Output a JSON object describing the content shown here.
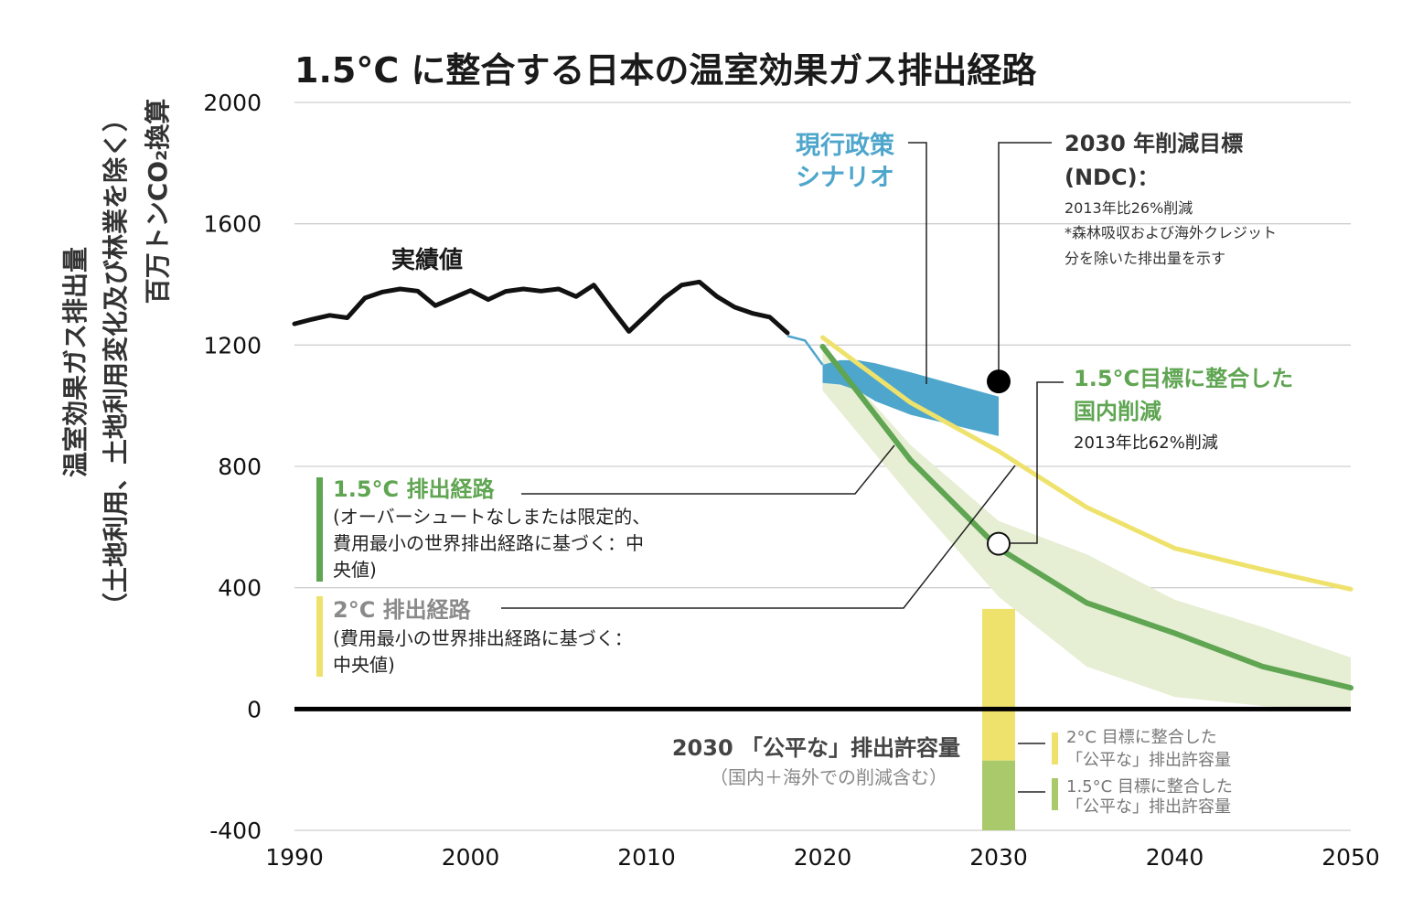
{
  "chart_data": {
    "type": "line",
    "title": "1.5°C に整合する日本の温室効果ガス排出経路",
    "ylabel_lines": [
      "温室効果ガス排出量",
      "（土地利用、土地利用変化及び林業を除く）",
      "百万トンCO₂換算"
    ],
    "xlim": [
      1990,
      2050
    ],
    "ylim": [
      -400,
      2000
    ],
    "x_ticks": [
      "1990",
      "2000",
      "2010",
      "2020",
      "2030",
      "2040",
      "2050"
    ],
    "y_ticks": [
      "2000",
      "1600",
      "1200",
      "800",
      "400",
      "0",
      "-400"
    ],
    "colors": {
      "historical": "#111111",
      "policy": "#4ea6cc",
      "green": "#5fa552",
      "green_band": "#e6eed3",
      "yellow": "#efe26c",
      "yellow_bar": "#efe26c",
      "green_bar": "#a9c96a",
      "grid": "#cfcfcf"
    },
    "series": [
      {
        "name": "実績値",
        "x": [
          1990,
          1991,
          1992,
          1993,
          1994,
          1995,
          1996,
          1997,
          1998,
          1999,
          2000,
          2001,
          2002,
          2003,
          2004,
          2005,
          2006,
          2007,
          2008,
          2009,
          2010,
          2011,
          2012,
          2013,
          2014,
          2015,
          2016,
          2017,
          2018
        ],
        "y": [
          1270,
          1285,
          1298,
          1290,
          1355,
          1375,
          1385,
          1378,
          1330,
          1355,
          1380,
          1350,
          1377,
          1385,
          1378,
          1385,
          1360,
          1398,
          1320,
          1245,
          1300,
          1355,
          1398,
          1408,
          1360,
          1325,
          1305,
          1292,
          1240
        ]
      },
      {
        "name": "1.5°C 排出経路",
        "x": [
          2020,
          2025,
          2030,
          2035,
          2040,
          2045,
          2050
        ],
        "y": [
          1195,
          820,
          530,
          350,
          250,
          140,
          70
        ]
      },
      {
        "name": "2°C 排出経路",
        "x": [
          2020,
          2025,
          2030,
          2035,
          2040,
          2045,
          2050
        ],
        "y": [
          1225,
          1010,
          850,
          665,
          530,
          460,
          395
        ]
      }
    ],
    "policy_band": {
      "x_upper": [
        2020,
        2021,
        2022,
        2023,
        2025,
        2030
      ],
      "upper": [
        1135,
        1150,
        1150,
        1140,
        1110,
        1030
      ],
      "x_lower": [
        2020,
        2021,
        2022,
        2023,
        2025,
        2030
      ],
      "lower": [
        1075,
        1070,
        1050,
        1015,
        970,
        900
      ],
      "transition_x": [
        2018,
        2019,
        2020
      ],
      "transition_y": [
        1230,
        1215,
        1135
      ]
    },
    "green_band": {
      "x": [
        2020,
        2025,
        2030,
        2035,
        2040,
        2045,
        2050
      ],
      "upper": [
        1195,
        870,
        620,
        510,
        360,
        270,
        170
      ],
      "lower": [
        1050,
        700,
        370,
        140,
        40,
        10,
        0
      ]
    },
    "ndc_point": {
      "x": 2030,
      "y": 1080
    },
    "domestic_point": {
      "x": 2030,
      "y": 545
    },
    "allowance_bars": {
      "x": 2030,
      "yellow_top": 330,
      "yellow_bottom": -170,
      "green_bottom": -400
    }
  },
  "annotations": {
    "historical": "実績値",
    "policy_l1": "現行政策",
    "policy_l2": "シナリオ",
    "ndc_l1": "2030 年削減目標",
    "ndc_l2": "(NDC)：",
    "ndc_l3": "2013年比26%削減",
    "ndc_l4": "*森林吸収および海外クレジット",
    "ndc_l5": "分を除いた排出量を示す",
    "dom_l1": "1.5°C目標に整合した",
    "dom_l2": "国内削減",
    "dom_l3": "2013年比62%削減",
    "p15_l1": "1.5°C 排出経路",
    "p15_l2": "(オーバーシュートなしまたは限定的、",
    "p15_l3": "費用最小の世界排出経路に基づく：中",
    "p15_l4": "央値)",
    "p2_l1": "2°C 排出経路",
    "p2_l2": "(費用最小の世界排出経路に基づく：",
    "p2_l3": "中央値)",
    "fair_l1": "2030 「公平な」排出許容量",
    "fair_l2": "（国内＋海外での削減含む）",
    "fair2_l1": "2°C 目標に整合した",
    "fair2_l2": "「公平な」排出許容量",
    "fair15_l1": "1.5°C 目標に整合した",
    "fair15_l2": "「公平な」排出許容量"
  }
}
